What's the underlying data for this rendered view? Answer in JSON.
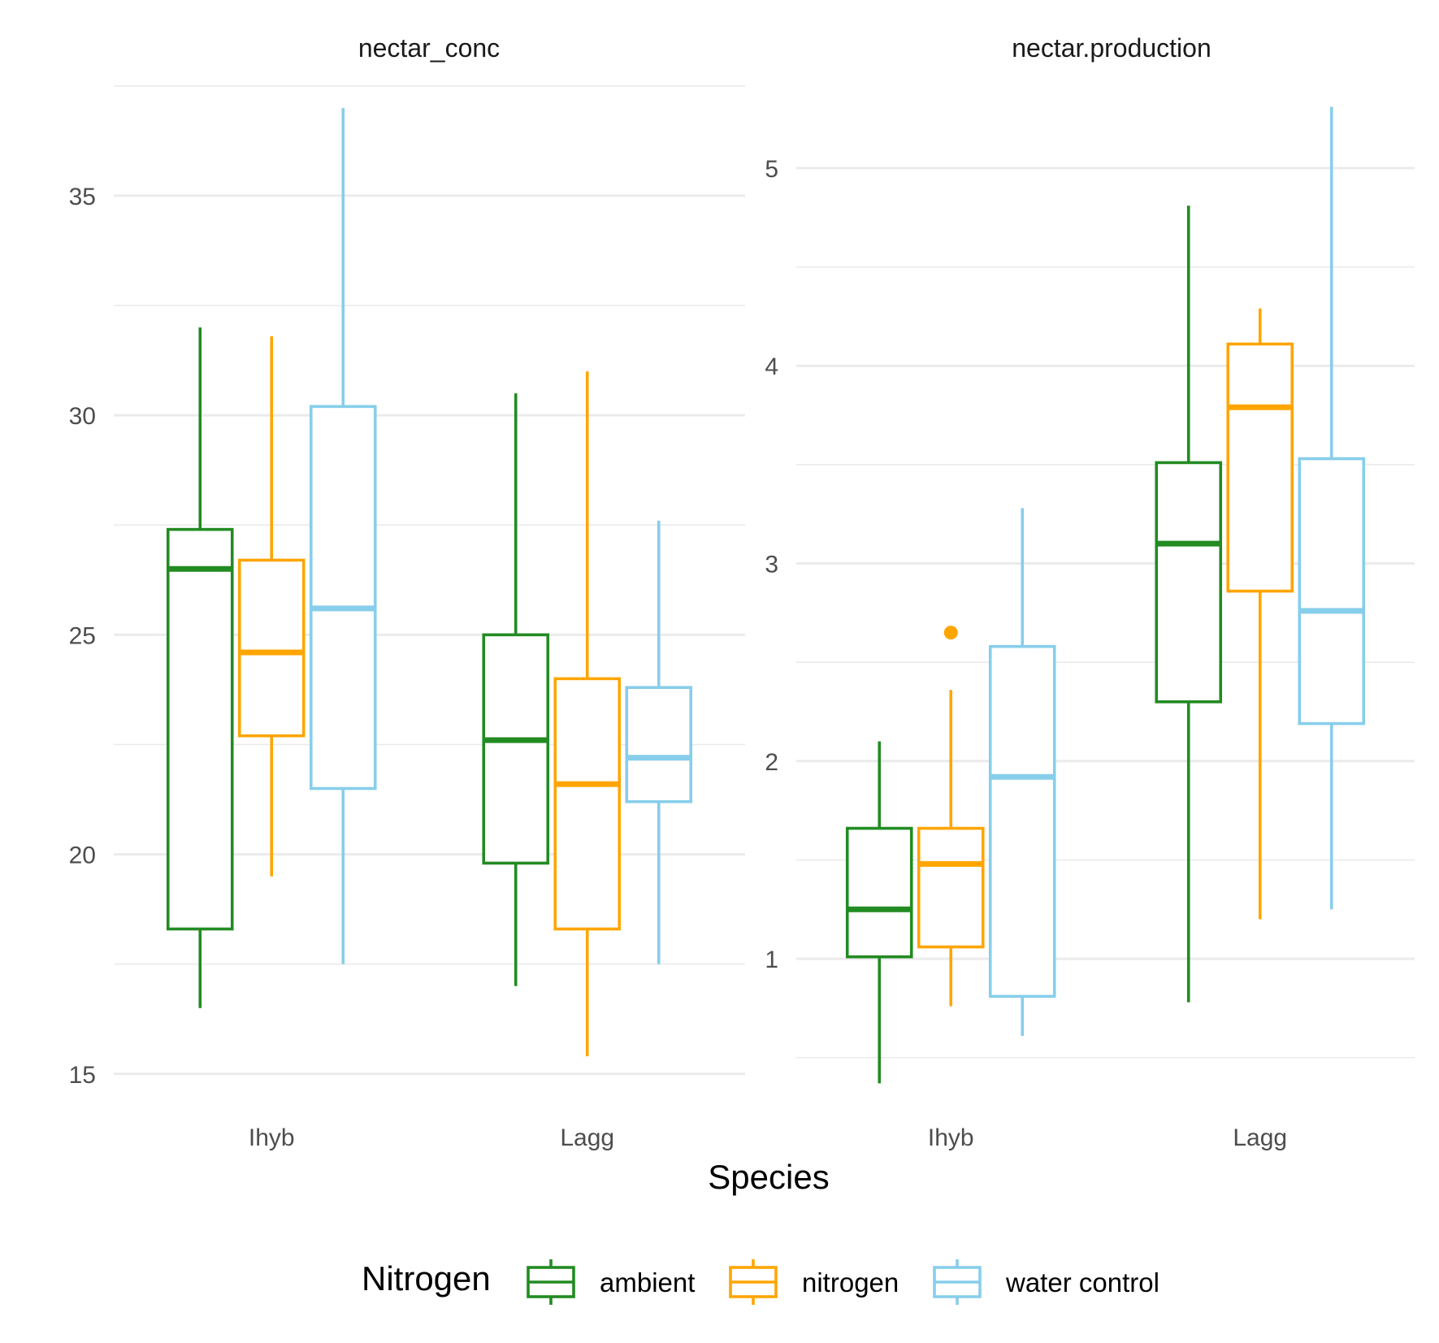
{
  "chart_data": {
    "type": "boxplot",
    "x_label": "Species",
    "y_label": "",
    "legend": {
      "title": "Nitrogen",
      "position": "bottom",
      "entries": [
        {
          "name": "ambient",
          "color": "#228B22"
        },
        {
          "name": "nitrogen",
          "color": "#FFA500"
        },
        {
          "name": "water control",
          "color": "#87CEEB"
        }
      ]
    },
    "categories": [
      "Ihyb",
      "Lagg"
    ],
    "grid": true,
    "facets": [
      {
        "title": "nectar_conc",
        "y_range": [
          14.2,
          37.7
        ],
        "y_ticks": [
          15,
          20,
          25,
          30,
          35
        ],
        "y_tick_labels": [
          "15",
          "20",
          "25",
          "30",
          "35"
        ],
        "y_minor": [
          17.5,
          22.5,
          27.5,
          32.5,
          37.5
        ],
        "boxes": [
          {
            "category": "Ihyb",
            "group": "ambient",
            "lower_whisker": 16.5,
            "q1": 18.3,
            "median": 26.5,
            "q3": 27.4,
            "upper_whisker": 32.0,
            "outliers": []
          },
          {
            "category": "Ihyb",
            "group": "nitrogen",
            "lower_whisker": 19.5,
            "q1": 22.7,
            "median": 24.6,
            "q3": 26.7,
            "upper_whisker": 31.8,
            "outliers": []
          },
          {
            "category": "Ihyb",
            "group": "water control",
            "lower_whisker": 17.5,
            "q1": 21.5,
            "median": 25.6,
            "q3": 30.2,
            "upper_whisker": 37.0,
            "outliers": []
          },
          {
            "category": "Lagg",
            "group": "ambient",
            "lower_whisker": 17.0,
            "q1": 19.8,
            "median": 22.6,
            "q3": 25.0,
            "upper_whisker": 30.5,
            "outliers": []
          },
          {
            "category": "Lagg",
            "group": "nitrogen",
            "lower_whisker": 15.4,
            "q1": 18.3,
            "median": 21.6,
            "q3": 24.0,
            "upper_whisker": 31.0,
            "outliers": []
          },
          {
            "category": "Lagg",
            "group": "water control",
            "lower_whisker": 17.5,
            "q1": 21.2,
            "median": 22.2,
            "q3": 23.8,
            "upper_whisker": 27.6,
            "outliers": []
          }
        ]
      },
      {
        "title": "nectar.production",
        "y_range": [
          0.24,
          5.46
        ],
        "y_ticks": [
          1,
          2,
          3,
          4,
          5
        ],
        "y_tick_labels": [
          "1",
          "2",
          "3",
          "4",
          "5"
        ],
        "y_minor": [
          0.5,
          1.5,
          2.5,
          3.5,
          4.5,
          5.5
        ],
        "boxes": [
          {
            "category": "Ihyb",
            "group": "ambient",
            "lower_whisker": 0.37,
            "q1": 1.01,
            "median": 1.25,
            "q3": 1.66,
            "upper_whisker": 2.1,
            "outliers": []
          },
          {
            "category": "Ihyb",
            "group": "nitrogen",
            "lower_whisker": 0.76,
            "q1": 1.06,
            "median": 1.48,
            "q3": 1.66,
            "upper_whisker": 2.36,
            "outliers": [
              2.65
            ]
          },
          {
            "category": "Ihyb",
            "group": "water control",
            "lower_whisker": 0.61,
            "q1": 0.81,
            "median": 1.92,
            "q3": 2.58,
            "upper_whisker": 3.28,
            "outliers": []
          },
          {
            "category": "Lagg",
            "group": "ambient",
            "lower_whisker": 0.78,
            "q1": 2.3,
            "median": 3.1,
            "q3": 3.51,
            "upper_whisker": 4.81,
            "outliers": []
          },
          {
            "category": "Lagg",
            "group": "nitrogen",
            "lower_whisker": 1.2,
            "q1": 2.86,
            "median": 3.79,
            "q3": 4.11,
            "upper_whisker": 4.29,
            "outliers": []
          },
          {
            "category": "Lagg",
            "group": "water control",
            "lower_whisker": 1.25,
            "q1": 2.19,
            "median": 2.76,
            "q3": 3.53,
            "upper_whisker": 5.31,
            "outliers": []
          }
        ]
      }
    ]
  }
}
